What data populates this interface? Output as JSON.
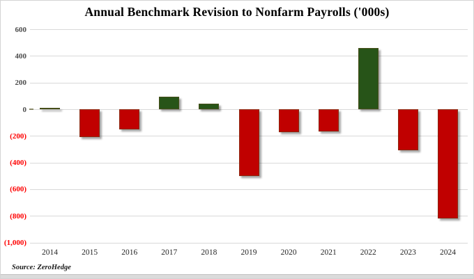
{
  "chart_data": {
    "type": "bar",
    "title": "Annual Benchmark Revision to Nonfarm Payrolls ('000s)",
    "source": "Source: ZeroHedge",
    "categories": [
      "2014",
      "2015",
      "2016",
      "2017",
      "2018",
      "2019",
      "2020",
      "2021",
      "2022",
      "2023",
      "2024"
    ],
    "values": [
      7,
      -208,
      -150,
      95,
      43,
      -501,
      -173,
      -166,
      462,
      -306,
      -818
    ],
    "ylim": [
      -1000,
      600
    ],
    "ytick_step": 200,
    "yticks": [
      {
        "value": 600,
        "label": "600"
      },
      {
        "value": 400,
        "label": "400"
      },
      {
        "value": 200,
        "label": "200"
      },
      {
        "value": 0,
        "label": "0"
      },
      {
        "value": -200,
        "label": "(200)"
      },
      {
        "value": -400,
        "label": "(400)"
      },
      {
        "value": -600,
        "label": "(600)"
      },
      {
        "value": -800,
        "label": "(800)"
      },
      {
        "value": -1000,
        "label": "(1,000)"
      }
    ],
    "grid": "horizontal",
    "legend": "none",
    "colors": {
      "positive_bar": "#275418",
      "negative_bar": "#C00000",
      "ytick_positive": "#4d4d4d",
      "ytick_negative": "#fe0000",
      "gridline": "#d9d9d9"
    }
  }
}
